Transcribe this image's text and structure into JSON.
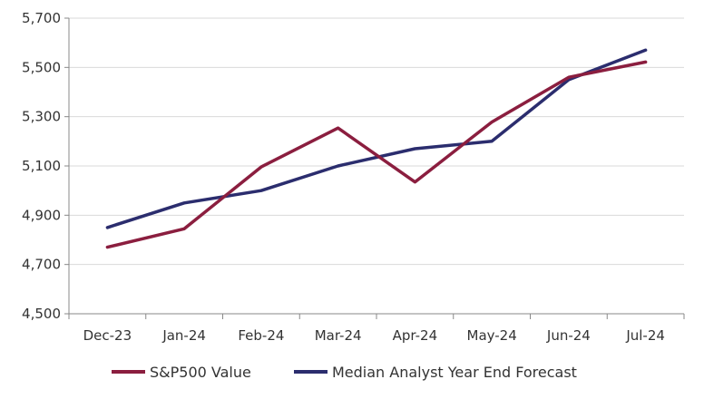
{
  "chart_data": {
    "type": "line",
    "categories": [
      "Dec-23",
      "Jan-24",
      "Feb-24",
      "Mar-24",
      "Apr-24",
      "May-24",
      "Jun-24",
      "Jul-24"
    ],
    "series": [
      {
        "name": "S&P500 Value",
        "color": "#8b1e3f",
        "values": [
          4770,
          4845,
          5096,
          5254,
          5035,
          5278,
          5460,
          5522
        ]
      },
      {
        "name": "Median Analyst Year End Forecast",
        "color": "#2b2d6e",
        "values": [
          4850,
          4950,
          5000,
          5100,
          5170,
          5200,
          5450,
          5570
        ]
      }
    ],
    "yticks": [
      "4,500",
      "4,700",
      "4,900",
      "5,100",
      "5,300",
      "5,500",
      "5,700"
    ],
    "ylim": [
      4500,
      5700
    ],
    "grid": "horizontal",
    "legend_position": "bottom",
    "title": "",
    "xlabel": "",
    "ylabel": ""
  }
}
